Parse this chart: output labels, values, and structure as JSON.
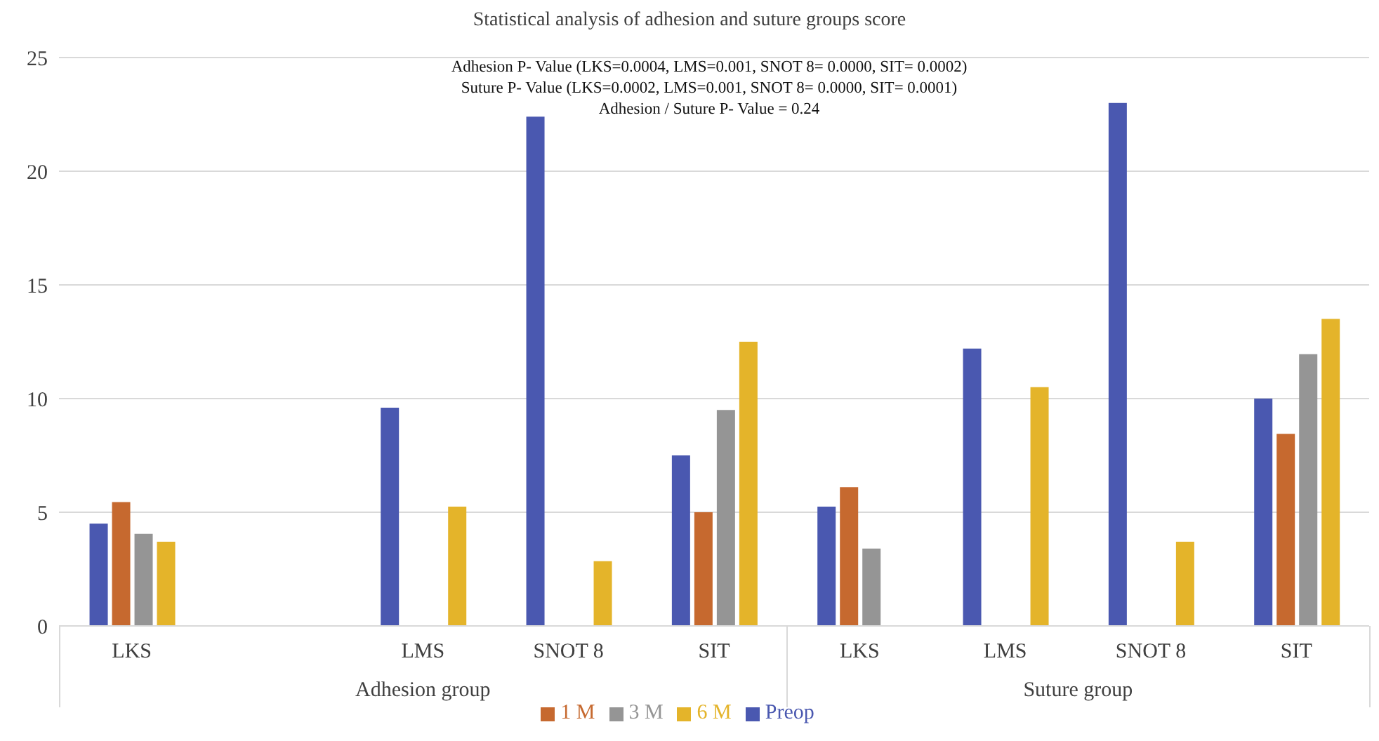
{
  "chart_data": {
    "type": "bar",
    "title": "Statistical analysis of adhesion and suture groups score",
    "categories": [
      "LKS",
      null,
      "LMS",
      "SNOT 8",
      "SIT",
      "LKS",
      "LMS",
      "SNOT 8",
      "SIT"
    ],
    "series": [
      {
        "name": "Preop",
        "color": "#4a58b0",
        "values": [
          4.5,
          null,
          9.6,
          22.4,
          7.5,
          5.25,
          12.2,
          23.0,
          10.0
        ]
      },
      {
        "name": "1 M",
        "color": "#c6692f",
        "values": [
          5.45,
          null,
          null,
          null,
          5.0,
          6.1,
          null,
          null,
          8.45
        ]
      },
      {
        "name": "3 M",
        "color": "#959595",
        "values": [
          4.05,
          null,
          null,
          null,
          9.5,
          3.4,
          null,
          null,
          11.95
        ]
      },
      {
        "name": "6 M",
        "color": "#e4b42a",
        "values": [
          3.7,
          null,
          5.25,
          2.85,
          12.5,
          null,
          10.5,
          3.7,
          13.5
        ]
      }
    ],
    "annotations": [
      "Adhesion P- Value (LKS=0.0004, LMS=0.001, SNOT 8= 0.0000, SIT= 0.0002)",
      "Suture P- Value (LKS=0.0002, LMS=0.001, SNOT 8= 0.0000, SIT= 0.0001)",
      "Adhesion / Suture P- Value = 0.24",
      "Adhesion group",
      "Suture group"
    ],
    "ylim": [
      0,
      25
    ],
    "yticks": [
      0,
      5,
      10,
      15,
      20,
      25
    ],
    "grid": "y",
    "legend": "bottom"
  }
}
